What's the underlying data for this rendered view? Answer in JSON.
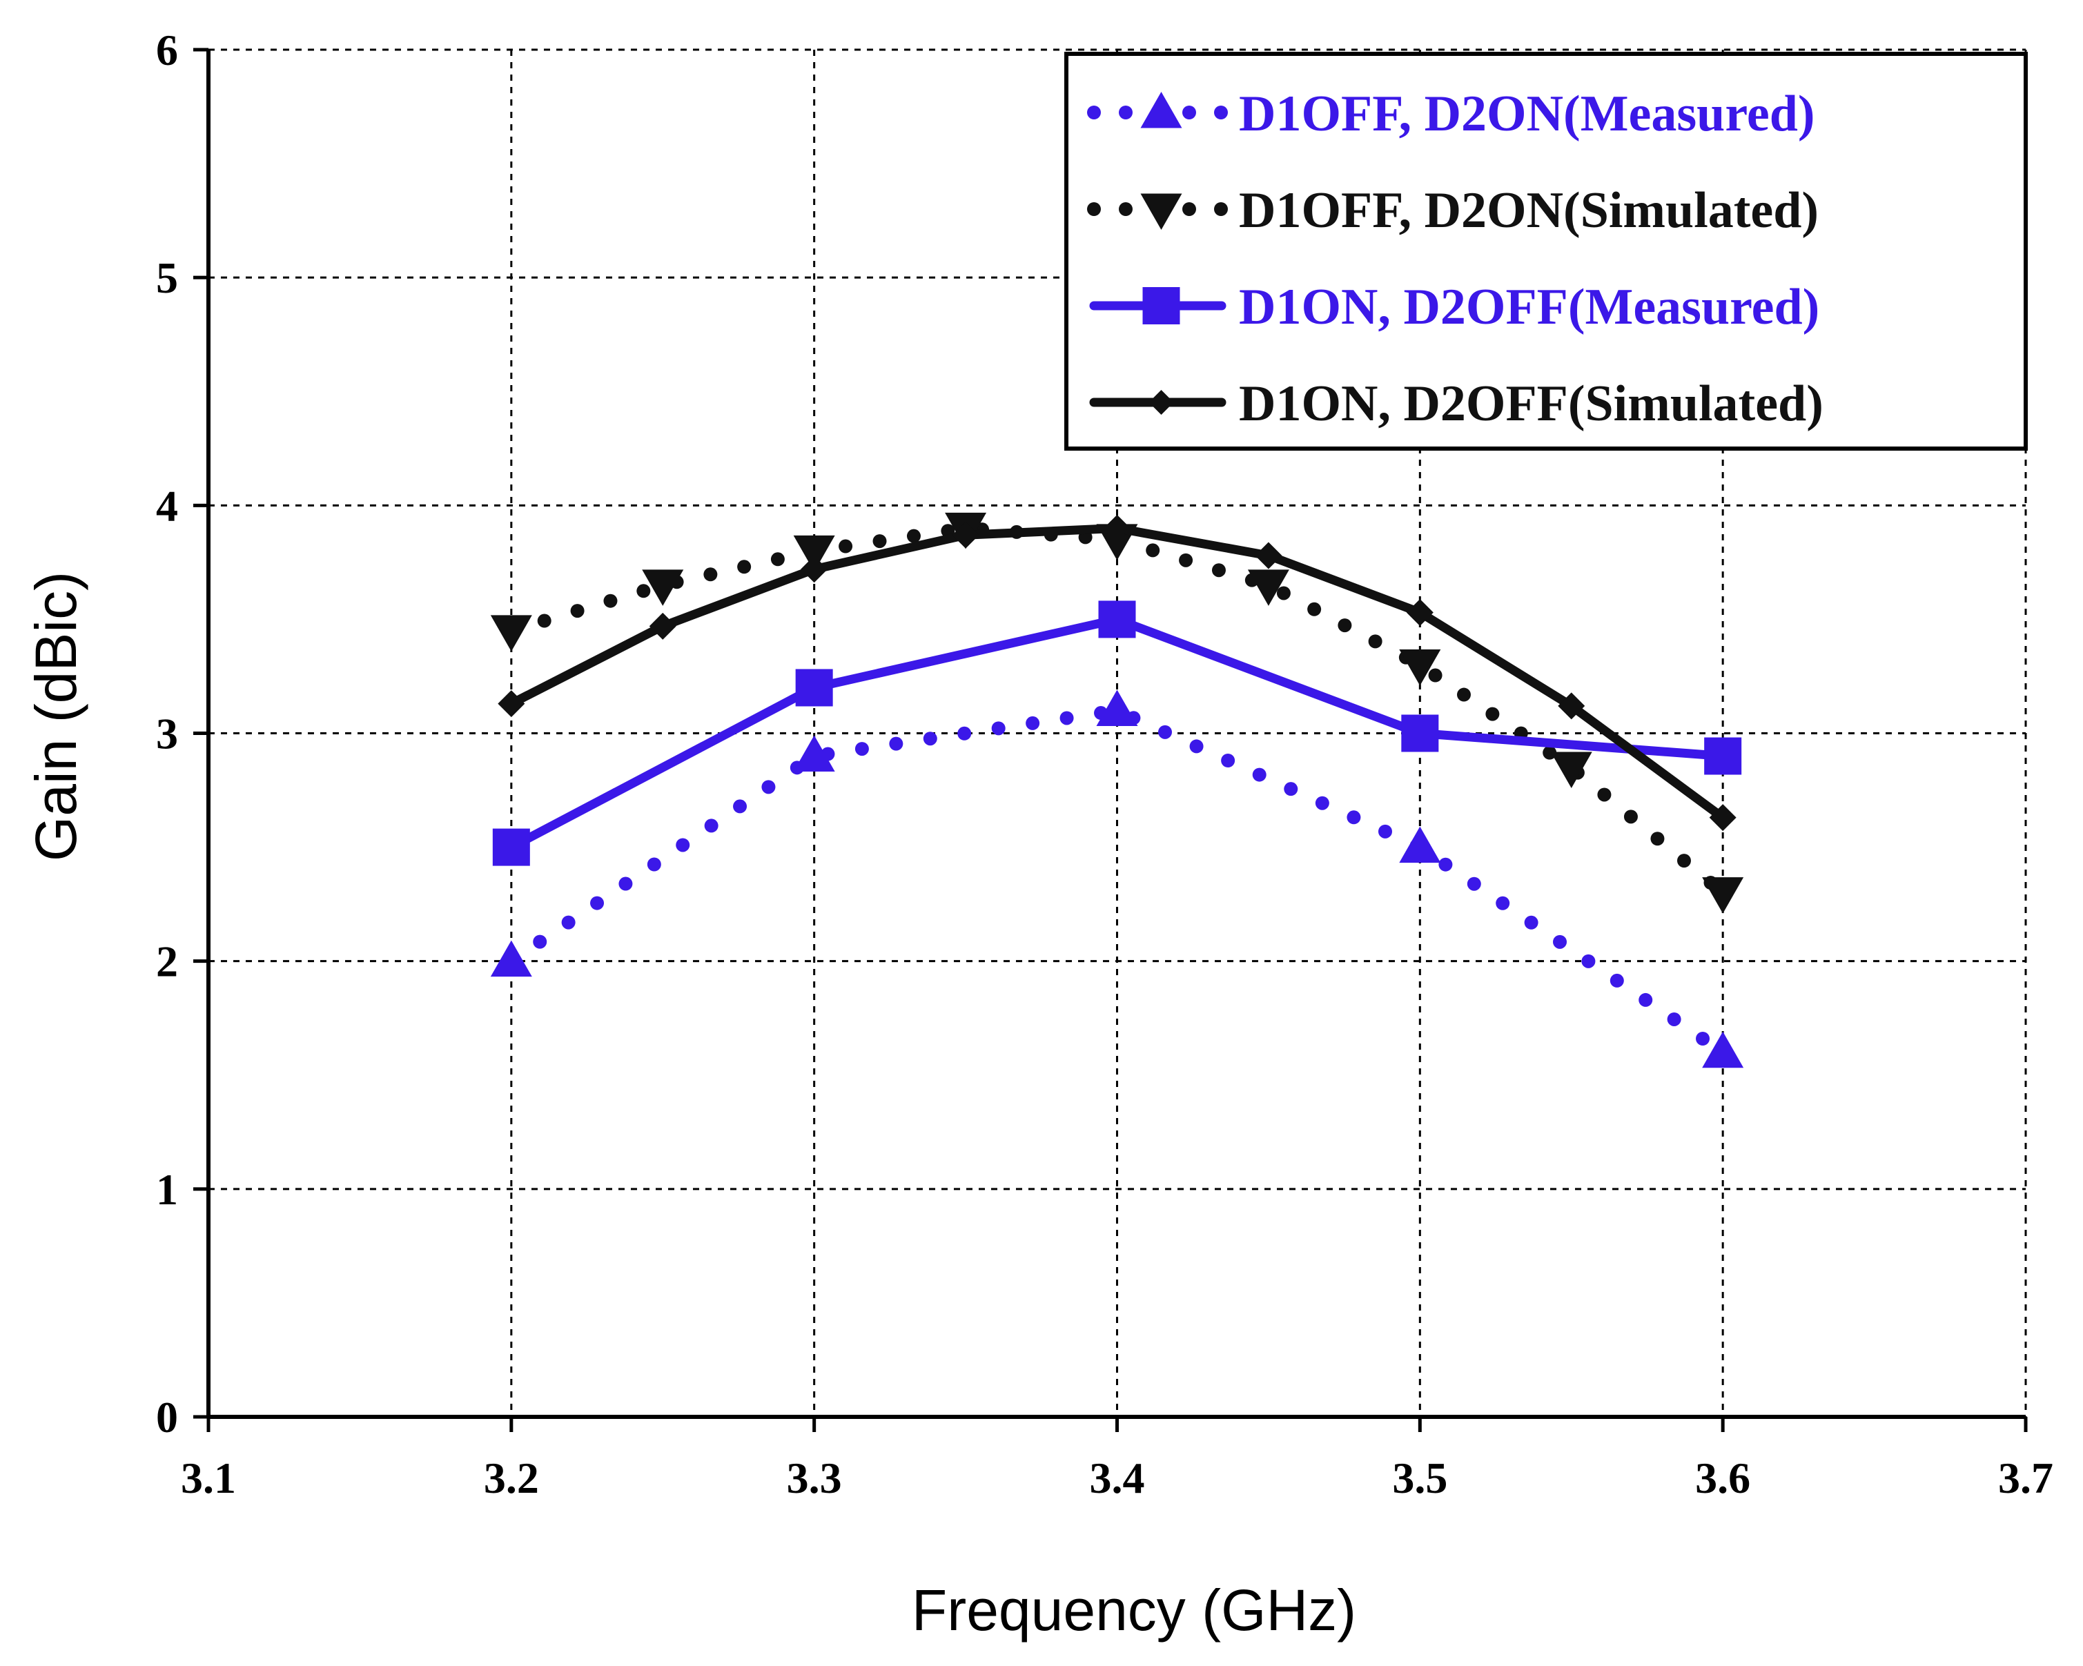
{
  "chart_data": {
    "type": "line",
    "title": "",
    "xlabel": "Frequency (GHz)",
    "ylabel": "Gain (dBic)",
    "xlim": [
      3.1,
      3.7
    ],
    "ylim": [
      0,
      6
    ],
    "x_ticks": [
      "3.1",
      "3.2",
      "3.3",
      "3.4",
      "3.5",
      "3.6",
      "3.7"
    ],
    "y_ticks": [
      "0",
      "1",
      "2",
      "3",
      "4",
      "5",
      "6"
    ],
    "grid": true,
    "legend_position": "top-right",
    "series": [
      {
        "name": "D1OFF, D2ON(Measured)",
        "color": "#3b18e8",
        "line_style": "dotted",
        "marker": "triangle-up",
        "x": [
          3.2,
          3.3,
          3.4,
          3.5,
          3.6
        ],
        "y": [
          2.0,
          2.9,
          3.1,
          2.5,
          1.6
        ]
      },
      {
        "name": "D1OFF, D2ON(Simulated)",
        "color": "#111111",
        "line_style": "dotted",
        "marker": "triangle-down",
        "x": [
          3.2,
          3.25,
          3.3,
          3.35,
          3.4,
          3.45,
          3.5,
          3.55,
          3.6
        ],
        "y": [
          3.45,
          3.65,
          3.8,
          3.9,
          3.85,
          3.65,
          3.3,
          2.85,
          2.3
        ]
      },
      {
        "name": "D1ON, D2OFF(Measured)",
        "color": "#3b18e8",
        "line_style": "solid",
        "marker": "square",
        "x": [
          3.2,
          3.3,
          3.4,
          3.5,
          3.6
        ],
        "y": [
          2.5,
          3.2,
          3.5,
          3.0,
          2.9
        ]
      },
      {
        "name": "D1ON, D2OFF(Simulated)",
        "color": "#111111",
        "line_style": "solid",
        "marker": "diamond",
        "x": [
          3.2,
          3.25,
          3.3,
          3.35,
          3.4,
          3.45,
          3.5,
          3.55,
          3.6
        ],
        "y": [
          3.13,
          3.47,
          3.72,
          3.87,
          3.9,
          3.78,
          3.53,
          3.12,
          2.63
        ]
      }
    ]
  }
}
